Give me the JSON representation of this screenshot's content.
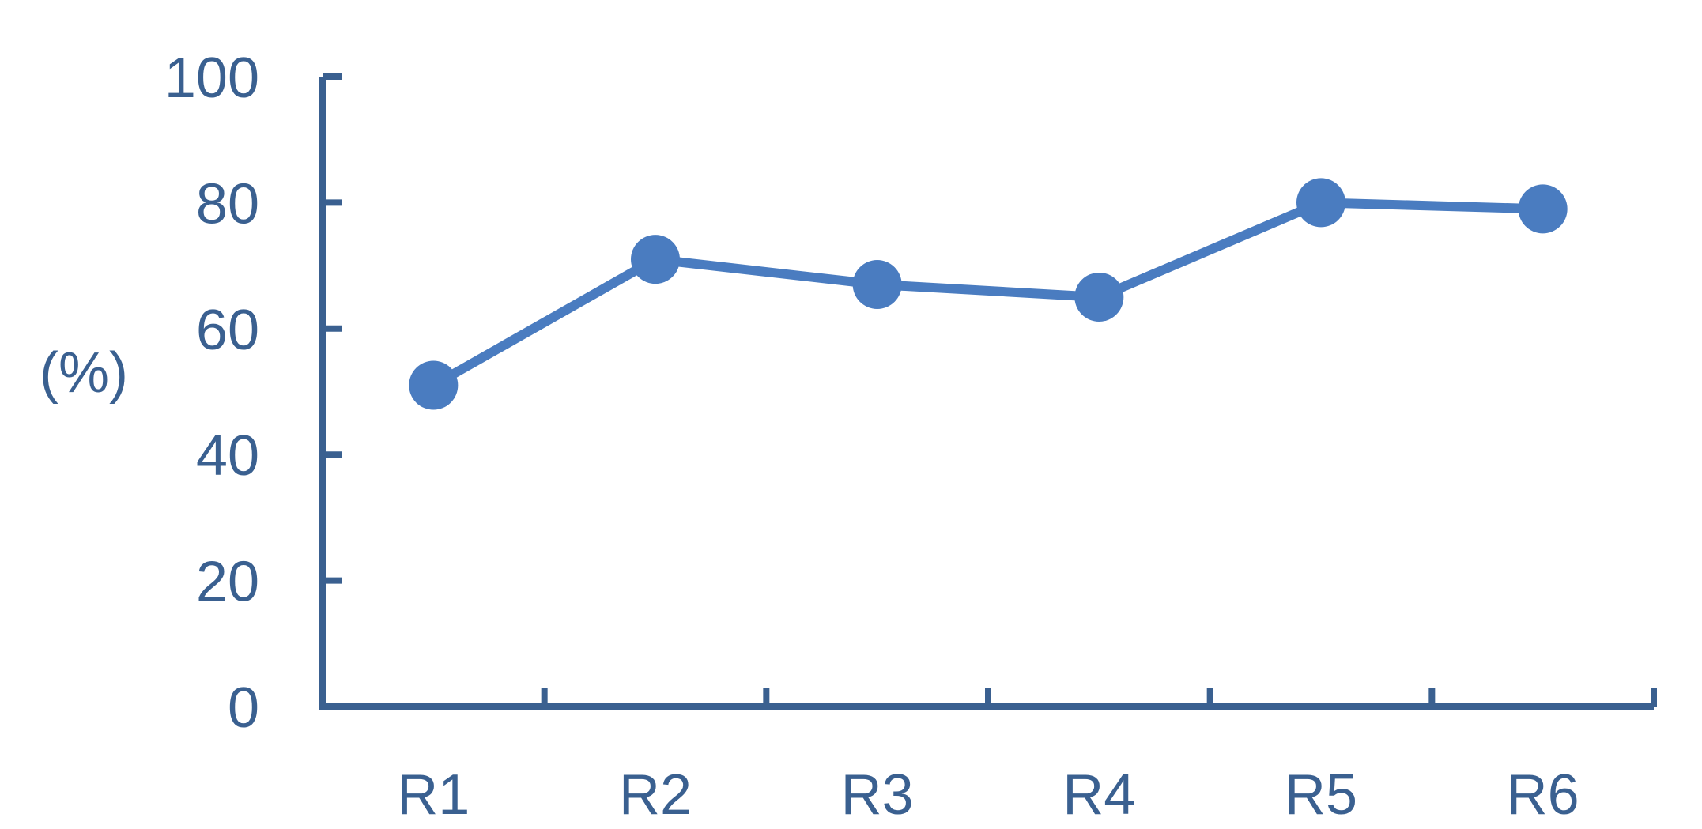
{
  "chart_data": {
    "type": "line",
    "categories": [
      "R1",
      "R2",
      "R3",
      "R4",
      "R5",
      "R6"
    ],
    "series": [
      {
        "values": [
          51,
          71,
          67,
          65,
          80,
          79
        ]
      }
    ],
    "ylabel": "(%)",
    "xlabel": "",
    "ylim": [
      0,
      100
    ],
    "yticks": [
      "0",
      "20",
      "40",
      "60",
      "80",
      "100"
    ],
    "grid": false,
    "legend": "none",
    "colors": {
      "axis": "#3a6090",
      "series": "#4a7cc0",
      "text": "#3a6090"
    }
  }
}
